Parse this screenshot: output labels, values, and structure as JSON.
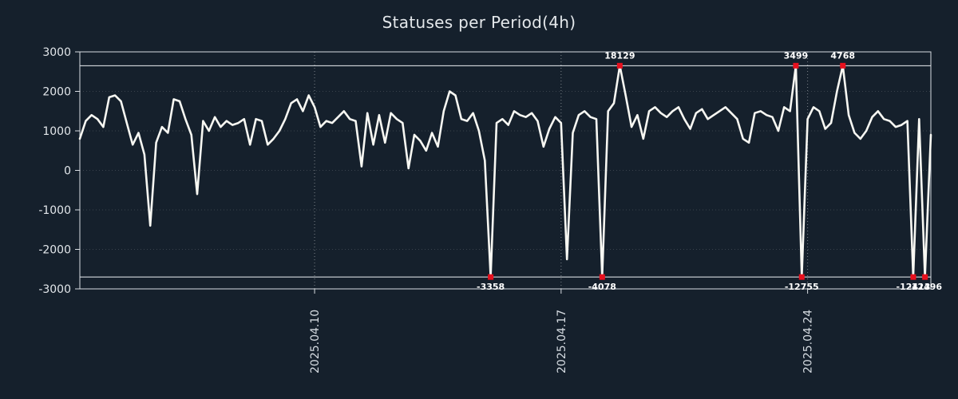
{
  "colors": {
    "background": "#15202c",
    "line": "#f7f7f2",
    "marker": "#e8101e",
    "grid": "#ffffff",
    "text": "#e3e7ea"
  },
  "chart_data": {
    "type": "line",
    "title": "Statuses per Period(4h)",
    "xlabel": "",
    "ylabel": "",
    "ylim": [
      -3000,
      3000
    ],
    "yticks": [
      -3000,
      -2000,
      -1000,
      0,
      1000,
      2000,
      3000
    ],
    "grid": "dotted",
    "legend": "none",
    "clip": {
      "top": 2650,
      "bottom": -2700
    },
    "x_tick_labels": [
      {
        "index": 40,
        "label": "2025.04.10"
      },
      {
        "index": 82,
        "label": "2025.04.17"
      },
      {
        "index": 124,
        "label": "2025.04.24"
      }
    ],
    "values": [
      800,
      1250,
      1400,
      1300,
      1100,
      1850,
      1900,
      1750,
      1200,
      650,
      950,
      400,
      -1400,
      700,
      1100,
      950,
      1800,
      1750,
      1300,
      900,
      -600,
      1250,
      1000,
      1350,
      1100,
      1250,
      1150,
      1200,
      1300,
      650,
      1300,
      1250,
      650,
      800,
      1000,
      1300,
      1700,
      1800,
      1500,
      1900,
      1600,
      1100,
      1250,
      1200,
      1350,
      1500,
      1300,
      1250,
      100,
      1450,
      650,
      1400,
      700,
      1450,
      1300,
      1200,
      50,
      900,
      750,
      500,
      950,
      600,
      1500,
      2000,
      1900,
      1300,
      1250,
      1450,
      1000,
      250,
      -3358,
      1200,
      1300,
      1150,
      1500,
      1400,
      1350,
      1450,
      1250,
      600,
      1050,
      1350,
      1200,
      -2250,
      950,
      1400,
      1500,
      1350,
      1300,
      -4078,
      1500,
      1700,
      18129,
      1900,
      1100,
      1400,
      800,
      1500,
      1600,
      1450,
      1350,
      1500,
      1600,
      1300,
      1050,
      1450,
      1550,
      1300,
      1400,
      1500,
      1600,
      1450,
      1300,
      800,
      700,
      1450,
      1500,
      1400,
      1350,
      1000,
      1600,
      1500,
      3499,
      -12755,
      1300,
      1600,
      1500,
      1050,
      1200,
      2000,
      4768,
      1400,
      950,
      800,
      1000,
      1350,
      1500,
      1300,
      1250,
      1100,
      1150,
      1250,
      -12413,
      1300,
      -12496,
      900
    ]
  }
}
